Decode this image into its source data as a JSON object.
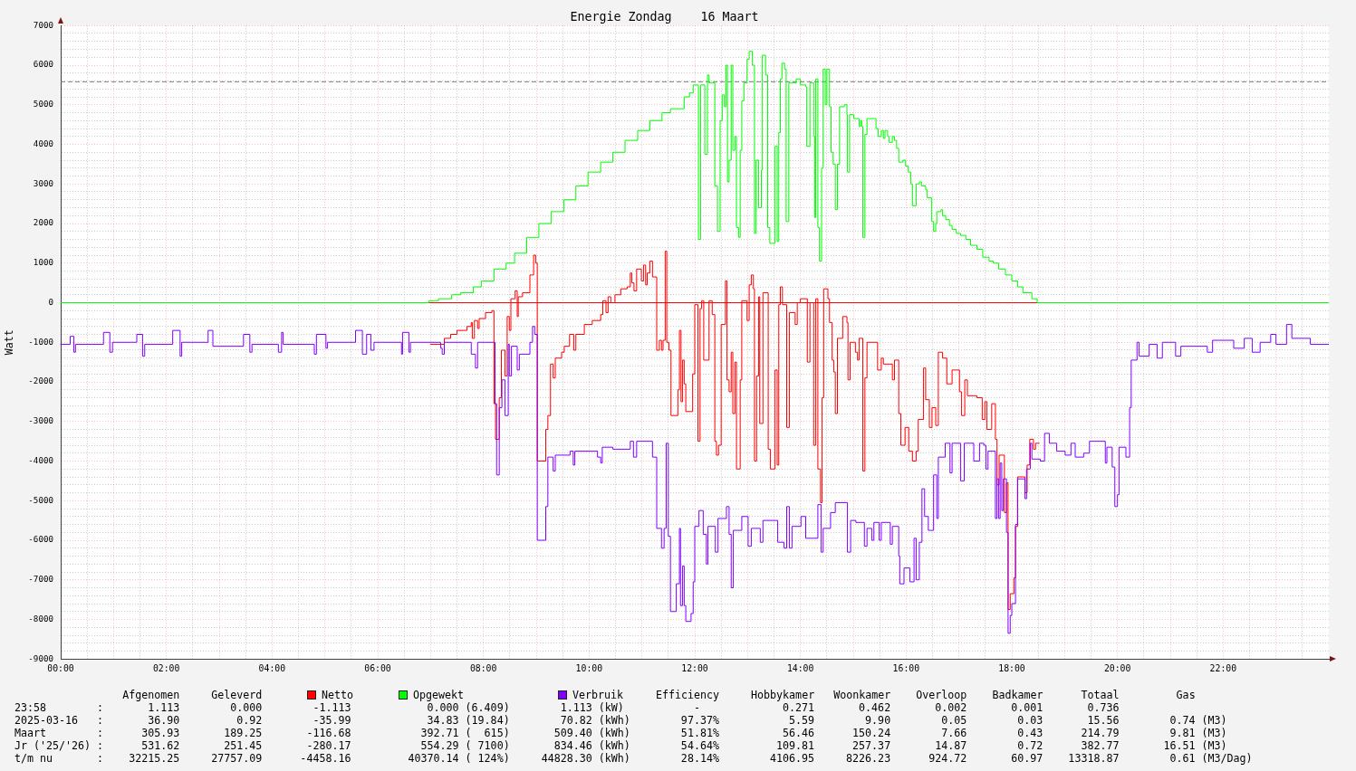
{
  "chart_data": {
    "type": "step",
    "title": "Energie Zondag    16 Maart",
    "ylabel": "Watt",
    "xlim": [
      0,
      24
    ],
    "ylim": [
      -9000,
      7000
    ],
    "xticks": [
      {
        "value": 0,
        "label": "00:00"
      },
      {
        "value": 0.5,
        "label": null
      },
      {
        "value": 1,
        "label": null
      },
      {
        "value": 1.5,
        "label": null
      },
      {
        "value": 2,
        "label": "02:00"
      },
      {
        "value": 2.5,
        "label": null
      },
      {
        "value": 3,
        "label": null
      },
      {
        "value": 3.5,
        "label": null
      },
      {
        "value": 4,
        "label": "04:00"
      },
      {
        "value": 4.5,
        "label": null
      },
      {
        "value": 5,
        "label": null
      },
      {
        "value": 5.5,
        "label": null
      },
      {
        "value": 6,
        "label": "06:00"
      },
      {
        "value": 6.5,
        "label": null
      },
      {
        "value": 7,
        "label": null
      },
      {
        "value": 7.5,
        "label": null
      },
      {
        "value": 8,
        "label": "08:00"
      },
      {
        "value": 8.5,
        "label": null
      },
      {
        "value": 9,
        "label": null
      },
      {
        "value": 9.5,
        "label": null
      },
      {
        "value": 10,
        "label": "10:00"
      },
      {
        "value": 10.5,
        "label": null
      },
      {
        "value": 11,
        "label": null
      },
      {
        "value": 11.5,
        "label": null
      },
      {
        "value": 12,
        "label": "12:00"
      },
      {
        "value": 12.5,
        "label": null
      },
      {
        "value": 13,
        "label": null
      },
      {
        "value": 13.5,
        "label": null
      },
      {
        "value": 14,
        "label": "14:00"
      },
      {
        "value": 14.5,
        "label": null
      },
      {
        "value": 15,
        "label": null
      },
      {
        "value": 15.5,
        "label": null
      },
      {
        "value": 16,
        "label": "16:00"
      },
      {
        "value": 16.5,
        "label": null
      },
      {
        "value": 17,
        "label": null
      },
      {
        "value": 17.5,
        "label": null
      },
      {
        "value": 18,
        "label": "18:00"
      },
      {
        "value": 18.5,
        "label": null
      },
      {
        "value": 19,
        "label": null
      },
      {
        "value": 19.5,
        "label": null
      },
      {
        "value": 20,
        "label": "20:00"
      },
      {
        "value": 20.5,
        "label": null
      },
      {
        "value": 21,
        "label": null
      },
      {
        "value": 21.5,
        "label": null
      },
      {
        "value": 22,
        "label": "22:00"
      },
      {
        "value": 22.5,
        "label": null
      },
      {
        "value": 23,
        "label": null
      },
      {
        "value": 23.5,
        "label": null
      }
    ],
    "yticks": [
      -9000,
      {
        "value": -8800,
        "label": null
      },
      {
        "value": -8600,
        "label": null
      },
      {
        "value": -8400,
        "label": null
      },
      {
        "value": -8200,
        "label": null
      },
      -8000,
      {
        "value": -7800,
        "label": null
      },
      {
        "value": -7600,
        "label": null
      },
      {
        "value": -7400,
        "label": null
      },
      {
        "value": -7200,
        "label": null
      },
      -7000,
      {
        "value": -6800,
        "label": null
      },
      {
        "value": -6600,
        "label": null
      },
      {
        "value": -6400,
        "label": null
      },
      {
        "value": -6200,
        "label": null
      },
      -6000,
      {
        "value": -5800,
        "label": null
      },
      {
        "value": -5600,
        "label": null
      },
      {
        "value": -5400,
        "label": null
      },
      {
        "value": -5200,
        "label": null
      },
      -5000,
      {
        "value": -4800,
        "label": null
      },
      {
        "value": -4600,
        "label": null
      },
      {
        "value": -4400,
        "label": null
      },
      {
        "value": -4200,
        "label": null
      },
      -4000,
      {
        "value": -3800,
        "label": null
      },
      {
        "value": -3600,
        "label": null
      },
      {
        "value": -3400,
        "label": null
      },
      {
        "value": -3200,
        "label": null
      },
      -3000,
      {
        "value": -2800,
        "label": null
      },
      {
        "value": -2600,
        "label": null
      },
      {
        "value": -2400,
        "label": null
      },
      {
        "value": -2200,
        "label": null
      },
      -2000,
      {
        "value": -1800,
        "label": null
      },
      {
        "value": -1600,
        "label": null
      },
      {
        "value": -1400,
        "label": null
      },
      {
        "value": -1200,
        "label": null
      },
      -1000,
      {
        "value": -800,
        "label": null
      },
      {
        "value": -600,
        "label": null
      },
      {
        "value": -400,
        "label": null
      },
      {
        "value": -200,
        "label": null
      },
      0,
      {
        "value": 200,
        "label": null
      },
      {
        "value": 400,
        "label": null
      },
      {
        "value": 600,
        "label": null
      },
      {
        "value": 800,
        "label": null
      },
      1000,
      {
        "value": 1200,
        "label": null
      },
      {
        "value": 1400,
        "label": null
      },
      {
        "value": 1600,
        "label": null
      },
      {
        "value": 1800,
        "label": null
      },
      2000,
      {
        "value": 2200,
        "label": null
      },
      {
        "value": 2400,
        "label": null
      },
      {
        "value": 2600,
        "label": null
      },
      {
        "value": 2800,
        "label": null
      },
      3000,
      {
        "value": 3200,
        "label": null
      },
      {
        "value": 3400,
        "label": null
      },
      {
        "value": 3600,
        "label": null
      },
      {
        "value": 3800,
        "label": null
      },
      4000,
      {
        "value": 4200,
        "label": null
      },
      {
        "value": 4400,
        "label": null
      },
      {
        "value": 4600,
        "label": null
      },
      {
        "value": 4800,
        "label": null
      },
      5000,
      {
        "value": 5200,
        "label": null
      },
      {
        "value": 5400,
        "label": null
      },
      {
        "value": 5600,
        "label": null
      },
      {
        "value": 5800,
        "label": null
      },
      6000,
      {
        "value": 6200,
        "label": null
      },
      {
        "value": 6400,
        "label": null
      },
      {
        "value": 6600,
        "label": null
      },
      {
        "value": 6800,
        "label": null
      },
      7000
    ],
    "grid": true,
    "legend": "bottom",
    "ref_lines": [
      {
        "axis": "y",
        "value": 0,
        "color": "#ff0000"
      },
      {
        "axis": "y",
        "value": 5580,
        "color": "#808080",
        "line_style": "dashed"
      }
    ],
    "series": [
      {
        "name": "Netto",
        "color": "#ff0000",
        "x": [
          7,
          7.26,
          7.38,
          7.5,
          7.69,
          7.77,
          7.79,
          7.83,
          7.89,
          7.92,
          8.04,
          8.16,
          8.2,
          8.23,
          8.3,
          8.34,
          8.41,
          8.45,
          8.49,
          8.52,
          8.6,
          8.64,
          8.66,
          8.74,
          8.88,
          8.95,
          8.99,
          9.02,
          9.18,
          9.22,
          9.27,
          9.32,
          9.36,
          9.48,
          9.53,
          9.63,
          9.71,
          9.75,
          9.91,
          10.06,
          10.22,
          10.26,
          10.32,
          10.36,
          10.41,
          10.49,
          10.6,
          10.72,
          10.78,
          10.81,
          10.85,
          10.9,
          10.99,
          11.03,
          11.07,
          11.1,
          11.15,
          11.2,
          11.28,
          11.33,
          11.37,
          11.4,
          11.44,
          11.47,
          11.51,
          11.55,
          11.68,
          11.71,
          11.74,
          11.77,
          11.8,
          11.83,
          11.96,
          12,
          12.06,
          12.1,
          12.13,
          12.17,
          12.27,
          12.33,
          12.38,
          12.41,
          12.45,
          12.5,
          12.58,
          12.61,
          12.65,
          12.69,
          12.72,
          12.76,
          12.79,
          12.86,
          12.89,
          12.99,
          13.03,
          13.07,
          13.11,
          13.13,
          13.17,
          13.21,
          13.23,
          13.29,
          13.39,
          13.43,
          13.52,
          13.56,
          13.59,
          13.62,
          13.66,
          13.74,
          13.79,
          13.9,
          13.94,
          14,
          14.13,
          14.18,
          14.25,
          14.29,
          14.33,
          14.38,
          14.41,
          14.44,
          14.52,
          14.55,
          14.6,
          14.63,
          14.66,
          14.7,
          14.8,
          14.88,
          14.9,
          14.94,
          15.04,
          15.08,
          15.11,
          15.18,
          15.22,
          15.26,
          15.46,
          15.53,
          15.57,
          15.74,
          15.78,
          15.86,
          15.9,
          15.98,
          16.05,
          16.12,
          16.19,
          16.23,
          16.33,
          16.37,
          16.44,
          16.49,
          16.56,
          16.61,
          16.69,
          16.77,
          16.87,
          17.01,
          17.05,
          17.11,
          17.16,
          17.34,
          17.44,
          17.49,
          17.53,
          17.62,
          17.69,
          17.72,
          17.76,
          17.86,
          17.9,
          17.93,
          17.97,
          18.04,
          18.07,
          18.11,
          18.25,
          18.29,
          18.34,
          18.41,
          18.45,
          18.52
        ],
        "values": [
          -1050,
          -900,
          -800,
          -700,
          -600,
          -500,
          -900,
          -450,
          -650,
          -400,
          -250,
          -200,
          -2550,
          -3450,
          -2400,
          -1200,
          -1850,
          -350,
          -700,
          100,
          300,
          -350,
          150,
          250,
          700,
          1200,
          1000,
          -4000,
          -3200,
          -2850,
          -1550,
          -1900,
          -1400,
          -1250,
          -1100,
          -800,
          -1200,
          -800,
          -550,
          -450,
          -300,
          50,
          -250,
          150,
          0,
          200,
          350,
          400,
          750,
          500,
          300,
          850,
          550,
          950,
          450,
          750,
          1050,
          650,
          -1200,
          -950,
          -1200,
          -950,
          1300,
          -1000,
          -1200,
          -2850,
          -2200,
          -700,
          -2500,
          -1450,
          -2050,
          -2750,
          -1800,
          -50,
          -3500,
          -150,
          50,
          -1450,
          50,
          -300,
          -3500,
          -3850,
          -3600,
          -550,
          550,
          -1950,
          -2250,
          -1250,
          -2800,
          -1500,
          -4200,
          -1950,
          50,
          -450,
          450,
          700,
          350,
          -4000,
          -1850,
          150,
          -3050,
          250,
          -3700,
          -4200,
          -1700,
          -4100,
          -50,
          400,
          -50,
          -3150,
          -250,
          -550,
          0,
          100,
          -1500,
          0,
          -3600,
          100,
          -4200,
          -5050,
          -2400,
          350,
          100,
          -500,
          -1450,
          -1750,
          -2800,
          -900,
          -350,
          -500,
          -1950,
          -1000,
          -1250,
          -1450,
          -900,
          -4250,
          -1900,
          -1000,
          -1700,
          -1400,
          -1550,
          -1950,
          -1450,
          -2800,
          -3600,
          -3150,
          -3750,
          -4000,
          -3750,
          -2950,
          -1650,
          -2450,
          -3150,
          -2650,
          -3100,
          -1250,
          -1400,
          -2050,
          -1700,
          -2250,
          -2850,
          -1950,
          -2350,
          -2400,
          -2950,
          -2500,
          -3200,
          -2550,
          -3450,
          -4600,
          -3850,
          -5300,
          -4550,
          -7750,
          -7350,
          -6950,
          -5650,
          -4400,
          -4800,
          -4100,
          -3450,
          -3700,
          -3550,
          -3550
        ]
      },
      {
        "name": "Opgewekt",
        "color": "#00ff00",
        "x": [
          0,
          6.97,
          7.15,
          7.4,
          7.57,
          7.81,
          7.96,
          8.2,
          8.43,
          8.59,
          8.82,
          9.05,
          9.28,
          9.52,
          9.75,
          9.98,
          10.22,
          10.45,
          10.68,
          10.92,
          11.15,
          11.38,
          11.54,
          11.8,
          11.9,
          11.97,
          12.07,
          12.11,
          12.19,
          12.24,
          12.27,
          12.38,
          12.43,
          12.48,
          12.52,
          12.56,
          12.59,
          12.62,
          12.65,
          12.69,
          12.72,
          12.76,
          12.79,
          12.83,
          12.86,
          12.89,
          12.93,
          12.99,
          13.03,
          13.09,
          13.13,
          13.16,
          13.21,
          13.26,
          13.28,
          13.34,
          13.38,
          13.42,
          13.52,
          13.56,
          13.59,
          13.62,
          13.65,
          13.7,
          13.73,
          13.78,
          13.92,
          14,
          14.1,
          14.12,
          14.18,
          14.25,
          14.27,
          14.29,
          14.33,
          14.36,
          14.4,
          14.43,
          14.47,
          14.5,
          14.55,
          14.58,
          14.62,
          14.66,
          14.7,
          14.74,
          14.83,
          14.88,
          14.89,
          14.93,
          15.01,
          15.11,
          15.14,
          15.16,
          15.18,
          15.22,
          15.26,
          15.43,
          15.47,
          15.53,
          15.57,
          15.6,
          15.65,
          15.68,
          15.74,
          15.78,
          15.82,
          15.86,
          15.94,
          15.99,
          16.04,
          16.09,
          16.12,
          16.19,
          16.25,
          16.29,
          16.37,
          16.4,
          16.48,
          16.52,
          16.56,
          16.58,
          16.66,
          16.69,
          16.75,
          16.82,
          16.87,
          16.95,
          17.03,
          17.13,
          17.22,
          17.34,
          17.45,
          17.57,
          17.65,
          17.75,
          17.88,
          18,
          18.11,
          18.21,
          18.38,
          18.48,
          24
        ],
        "values": [
          0,
          50,
          100,
          200,
          250,
          400,
          550,
          850,
          1000,
          1250,
          1650,
          2000,
          2300,
          2600,
          2950,
          3300,
          3550,
          3800,
          4100,
          4350,
          4600,
          4800,
          4900,
          5200,
          5300,
          5500,
          1600,
          5500,
          3750,
          5750,
          5550,
          2950,
          1800,
          4600,
          5250,
          4950,
          6000,
          3050,
          3600,
          6000,
          3850,
          4200,
          1900,
          1650,
          3850,
          5100,
          5550,
          6150,
          6350,
          6000,
          1750,
          3600,
          2400,
          3350,
          6250,
          5750,
          1900,
          1500,
          3950,
          1550,
          4300,
          5650,
          6050,
          5900,
          2050,
          5550,
          5650,
          5500,
          5450,
          3950,
          5550,
          4200,
          2150,
          5650,
          1900,
          1050,
          3400,
          5900,
          5000,
          5900,
          4950,
          3800,
          3500,
          2350,
          3500,
          4950,
          5000,
          4750,
          3300,
          4750,
          4650,
          4450,
          4600,
          4450,
          1650,
          4250,
          4650,
          4400,
          4200,
          4350,
          4150,
          4350,
          4200,
          4050,
          4200,
          4100,
          3900,
          3550,
          3600,
          3450,
          3300,
          3000,
          2450,
          3000,
          3050,
          2950,
          2850,
          2650,
          2050,
          1800,
          2000,
          2300,
          2350,
          2200,
          2100,
          1950,
          1850,
          1750,
          1700,
          1600,
          1450,
          1350,
          1150,
          1050,
          1000,
          850,
          700,
          550,
          400,
          250,
          100,
          0,
          0
        ]
      },
      {
        "name": "Verbruik",
        "color": "#8000ff",
        "x": [
          0,
          0.18,
          0.25,
          0.28,
          0.81,
          0.93,
          0.98,
          1.44,
          1.55,
          1.59,
          2.12,
          2.26,
          2.29,
          2.79,
          2.88,
          3.46,
          3.58,
          3.62,
          4.12,
          4.18,
          4.21,
          4.8,
          4.84,
          5.02,
          5.05,
          5.58,
          5.71,
          5.79,
          5.87,
          5.93,
          6.45,
          6.47,
          6.59,
          6.62,
          7.19,
          7.22,
          7.26,
          7.77,
          7.85,
          7.89,
          8.22,
          8.25,
          8.3,
          8.35,
          8.41,
          8.47,
          8.49,
          8.53,
          8.64,
          8.68,
          8.88,
          8.93,
          8.97,
          9.02,
          9.18,
          9.22,
          9.32,
          9.36,
          9.64,
          9.7,
          9.73,
          10.16,
          10.22,
          10.25,
          10.45,
          10.78,
          10.84,
          10.9,
          11.2,
          11.28,
          11.37,
          11.42,
          11.46,
          11.5,
          11.54,
          11.65,
          11.71,
          11.73,
          11.77,
          11.8,
          11.83,
          11.93,
          11.97,
          12,
          12.08,
          12.16,
          12.22,
          12.25,
          12.39,
          12.44,
          12.6,
          12.65,
          12.69,
          12.73,
          12.89,
          13.01,
          13.07,
          13.24,
          13.29,
          13.57,
          13.69,
          13.74,
          13.79,
          13.84,
          14.01,
          14.1,
          14.33,
          14.39,
          14.43,
          14.57,
          14.66,
          14.89,
          14.95,
          15.05,
          15.21,
          15.26,
          15.35,
          15.39,
          15.49,
          15.53,
          15.7,
          15.74,
          15.86,
          15.88,
          15.96,
          16.07,
          16.15,
          16.19,
          16.25,
          16.3,
          16.35,
          16.42,
          16.52,
          16.58,
          16.61,
          16.74,
          16.83,
          16.87,
          17.03,
          17.1,
          17.28,
          17.39,
          17.47,
          17.51,
          17.55,
          17.69,
          17.72,
          17.75,
          17.78,
          17.81,
          17.84,
          17.9,
          17.93,
          17.97,
          18,
          18.07,
          18.11,
          18.25,
          18.28,
          18.35,
          18.38,
          18.54,
          18.62,
          18.71,
          18.85,
          19.01,
          19.12,
          19.2,
          19.36,
          19.47,
          19.77,
          19.8,
          19.9,
          19.95,
          20,
          20.03,
          20.16,
          20.23,
          20.26,
          20.37,
          20.41,
          20.6,
          20.75,
          20.85,
          21.1,
          21.2,
          21.7,
          21.8,
          22.2,
          22.4,
          22.55,
          22.7,
          22.9,
          23,
          23.2,
          23.3,
          23.65,
          24
        ],
        "values": [
          -1050,
          -850,
          -1250,
          -1050,
          -750,
          -1250,
          -1000,
          -800,
          -1350,
          -1050,
          -700,
          -1350,
          -1000,
          -700,
          -1100,
          -800,
          -1250,
          -1050,
          -1250,
          -750,
          -1050,
          -1300,
          -800,
          -1150,
          -1000,
          -700,
          -1300,
          -800,
          -1200,
          -1000,
          -1300,
          -750,
          -1250,
          -1000,
          -1150,
          -1300,
          -1000,
          -1300,
          -1650,
          -1000,
          -2550,
          -4350,
          -2650,
          -1950,
          -2850,
          -1050,
          -1850,
          -1100,
          -1700,
          -1300,
          -1000,
          -600,
          -800,
          -6000,
          -5150,
          -3900,
          -4250,
          -3850,
          -3750,
          -4100,
          -3750,
          -3900,
          -4050,
          -3650,
          -3700,
          -3500,
          -3900,
          -3500,
          -3900,
          -5700,
          -6200,
          -5700,
          -3550,
          -5900,
          -7800,
          -7100,
          -5700,
          -7650,
          -6650,
          -7650,
          -8050,
          -7850,
          -7050,
          -5650,
          -5250,
          -5850,
          -6600,
          -5650,
          -6300,
          -5450,
          -5150,
          -5850,
          -7200,
          -5750,
          -5400,
          -6150,
          -5700,
          -6050,
          -5500,
          -6050,
          -6200,
          -5150,
          -6200,
          -5650,
          -5400,
          -5950,
          -5100,
          -6300,
          -5700,
          -5300,
          -5050,
          -6300,
          -5500,
          -5550,
          -6150,
          -5700,
          -6000,
          -5550,
          -6000,
          -5550,
          -6100,
          -5650,
          -6400,
          -7100,
          -6700,
          -7050,
          -5950,
          -7000,
          -6050,
          -4700,
          -5400,
          -5750,
          -4350,
          -5450,
          -3900,
          -3550,
          -4300,
          -3550,
          -4500,
          -3550,
          -4000,
          -3550,
          -3600,
          -4200,
          -3750,
          -5450,
          -4450,
          -5450,
          -4050,
          -5250,
          -4450,
          -5800,
          -8350,
          -7900,
          -7600,
          -5600,
          -4450,
          -4950,
          -4200,
          -3550,
          -3950,
          -4000,
          -3300,
          -3550,
          -3750,
          -3850,
          -3550,
          -3900,
          -3800,
          -3500,
          -4050,
          -3650,
          -4150,
          -5150,
          -4850,
          -3650,
          -3900,
          -2650,
          -1450,
          -1000,
          -1350,
          -1050,
          -1400,
          -1000,
          -1350,
          -1100,
          -1250,
          -950,
          -1150,
          -900,
          -1250,
          -1000,
          -800,
          -1050,
          -550,
          -900,
          -1050,
          -1050
        ]
      }
    ],
    "annotations": [
      "Afgenomen     Geleverd",
      "Efficiency     Hobbykamer   Woonkamer    Overloop    Badkamer      Totaal         Gas",
      "23:58        :       1.113        0.000        -1.113            0.000 (6.409)        1.113 (kW)           -             0.271       0.462       0.002       0.001       0.736",
      "2025-03-16   :       36.90         0.92        -35.99            34.83 (19.84)        70.82 (kWh)        97.37%           5.59        9.90        0.05        0.03       15.56        0.74 (M3)",
      "Maart        :      305.93       189.25       -116.68           392.71 (  615)       509.40 (kWh)        51.81%          56.46      150.24        7.66        0.43      214.79        9.81 (M3)",
      "Jr ('25/'26) :      531.62       251.45       -280.17           554.29 ( 7100)       834.46 (kWh)        54.64%         109.81      257.37       14.87        0.72      382.77       16.51 (M3)",
      "t/m nu       :    32215.25     27757.09      -4458.16         40370.14 ( 124%)     44828.30 (kWh)        28.14%        4106.95     8226.23      924.72       60.97    13318.87        0.61 (M3/Dag)"
    ]
  }
}
